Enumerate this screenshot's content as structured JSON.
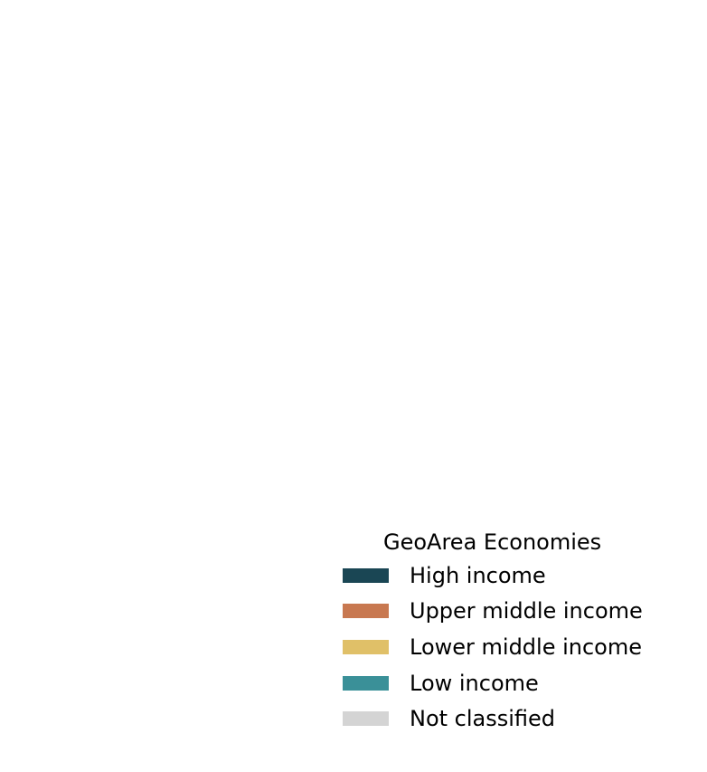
{
  "legend": {
    "title": "GeoArea Economies",
    "items": [
      {
        "label": "High income",
        "color": "#1a4654"
      },
      {
        "label": "Upper middle income",
        "color": "#c87850"
      },
      {
        "label": "Lower middle income",
        "color": "#e0c068"
      },
      {
        "label": "Low income",
        "color": "#3a9098"
      },
      {
        "label": "Not classified",
        "color": "#d4d4d4"
      }
    ]
  }
}
